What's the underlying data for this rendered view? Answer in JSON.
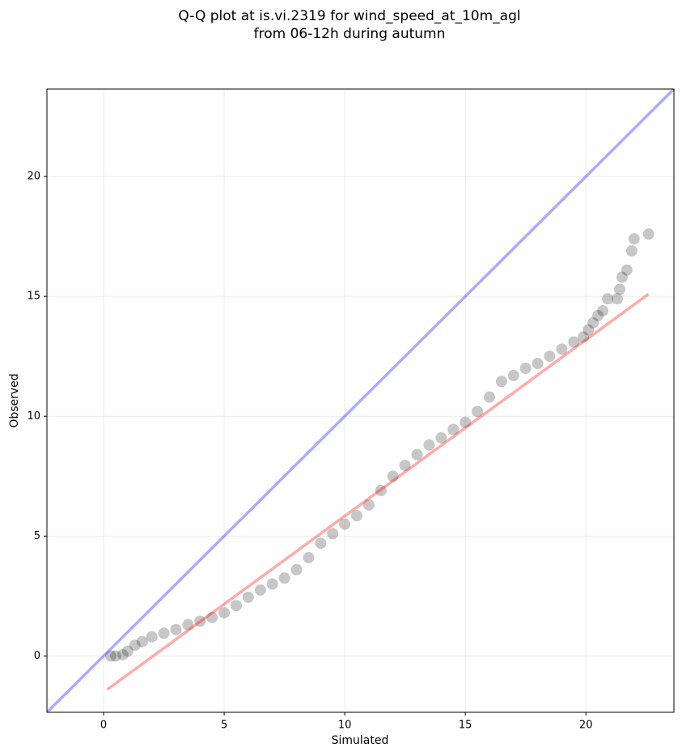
{
  "chart_data": {
    "type": "scatter",
    "title": [
      "Q-Q plot at is.vi.2319 for wind_speed_at_10m_agl",
      "from 06-12h during autumn"
    ],
    "x_label": "Simulated",
    "y_label": "Observed",
    "xlim": [
      -2.35,
      23.65
    ],
    "ylim": [
      -2.35,
      23.65
    ],
    "xticks": [
      0,
      5,
      10,
      15,
      20
    ],
    "yticks": [
      0,
      5,
      10,
      15,
      20
    ],
    "grid": true,
    "color": "#000000",
    "x": [
      0.3,
      0.5,
      0.8,
      1.0,
      1.3,
      1.6,
      2.0,
      2.5,
      3.0,
      3.5,
      4.0,
      4.5,
      5.0,
      5.5,
      6.0,
      6.5,
      7.0,
      7.5,
      8.0,
      8.5,
      9.0,
      9.5,
      10.0,
      10.5,
      11.0,
      11.5,
      12.0,
      12.5,
      13.0,
      13.5,
      14.0,
      14.5,
      15.0,
      15.5,
      16.0,
      16.5,
      17.0,
      17.5,
      18.0,
      18.5,
      19.0,
      19.5,
      19.9,
      20.1,
      20.3,
      20.5,
      20.7,
      20.9,
      21.3,
      21.4,
      21.5,
      21.7,
      21.9,
      22.0,
      22.6
    ],
    "values": [
      0.0,
      0.0,
      0.05,
      0.2,
      0.45,
      0.6,
      0.8,
      0.95,
      1.1,
      1.3,
      1.45,
      1.6,
      1.8,
      2.1,
      2.45,
      2.75,
      3.0,
      3.25,
      3.6,
      4.1,
      4.7,
      5.1,
      5.5,
      5.85,
      6.3,
      6.9,
      7.5,
      7.95,
      8.4,
      8.8,
      9.1,
      9.45,
      9.75,
      10.2,
      10.8,
      11.45,
      11.7,
      12.0,
      12.2,
      12.5,
      12.8,
      13.1,
      13.3,
      13.6,
      13.9,
      14.2,
      14.4,
      14.9,
      14.9,
      15.3,
      15.8,
      16.1,
      16.9,
      17.4,
      17.6
    ],
    "lines": [
      {
        "color": "#0000ff",
        "x": [
          -2.35,
          23.65
        ],
        "y": [
          -2.35,
          23.65
        ]
      },
      {
        "color": "#ff0000",
        "x": [
          0.15,
          22.6
        ],
        "y": [
          -1.4,
          15.1
        ]
      }
    ]
  }
}
